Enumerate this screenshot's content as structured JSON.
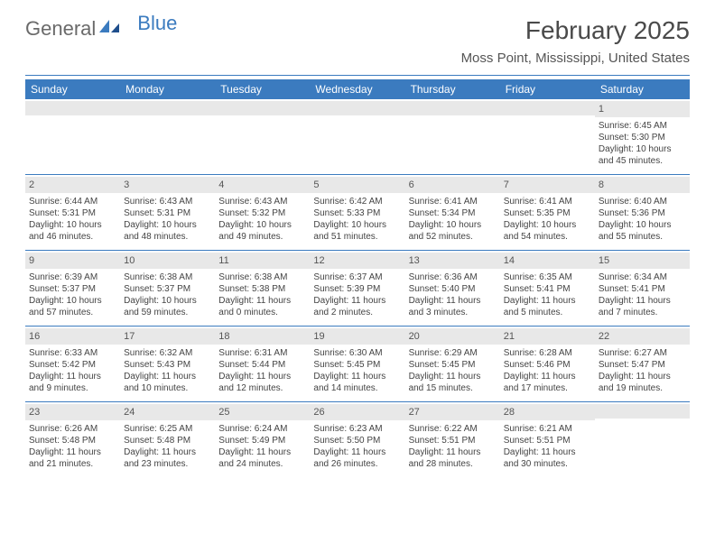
{
  "logo": {
    "text_general": "General",
    "text_blue": "Blue"
  },
  "header": {
    "month_title": "February 2025",
    "location": "Moss Point, Mississippi, United States"
  },
  "colors": {
    "brand_blue": "#3b7bbf",
    "header_gray": "#e8e8e8",
    "text": "#444444",
    "background": "#ffffff"
  },
  "day_names": [
    "Sunday",
    "Monday",
    "Tuesday",
    "Wednesday",
    "Thursday",
    "Friday",
    "Saturday"
  ],
  "weeks": [
    [
      {
        "empty": true
      },
      {
        "empty": true
      },
      {
        "empty": true
      },
      {
        "empty": true
      },
      {
        "empty": true
      },
      {
        "empty": true
      },
      {
        "day": "1",
        "sunrise": "Sunrise: 6:45 AM",
        "sunset": "Sunset: 5:30 PM",
        "daylight1": "Daylight: 10 hours",
        "daylight2": "and 45 minutes."
      }
    ],
    [
      {
        "day": "2",
        "sunrise": "Sunrise: 6:44 AM",
        "sunset": "Sunset: 5:31 PM",
        "daylight1": "Daylight: 10 hours",
        "daylight2": "and 46 minutes."
      },
      {
        "day": "3",
        "sunrise": "Sunrise: 6:43 AM",
        "sunset": "Sunset: 5:31 PM",
        "daylight1": "Daylight: 10 hours",
        "daylight2": "and 48 minutes."
      },
      {
        "day": "4",
        "sunrise": "Sunrise: 6:43 AM",
        "sunset": "Sunset: 5:32 PM",
        "daylight1": "Daylight: 10 hours",
        "daylight2": "and 49 minutes."
      },
      {
        "day": "5",
        "sunrise": "Sunrise: 6:42 AM",
        "sunset": "Sunset: 5:33 PM",
        "daylight1": "Daylight: 10 hours",
        "daylight2": "and 51 minutes."
      },
      {
        "day": "6",
        "sunrise": "Sunrise: 6:41 AM",
        "sunset": "Sunset: 5:34 PM",
        "daylight1": "Daylight: 10 hours",
        "daylight2": "and 52 minutes."
      },
      {
        "day": "7",
        "sunrise": "Sunrise: 6:41 AM",
        "sunset": "Sunset: 5:35 PM",
        "daylight1": "Daylight: 10 hours",
        "daylight2": "and 54 minutes."
      },
      {
        "day": "8",
        "sunrise": "Sunrise: 6:40 AM",
        "sunset": "Sunset: 5:36 PM",
        "daylight1": "Daylight: 10 hours",
        "daylight2": "and 55 minutes."
      }
    ],
    [
      {
        "day": "9",
        "sunrise": "Sunrise: 6:39 AM",
        "sunset": "Sunset: 5:37 PM",
        "daylight1": "Daylight: 10 hours",
        "daylight2": "and 57 minutes."
      },
      {
        "day": "10",
        "sunrise": "Sunrise: 6:38 AM",
        "sunset": "Sunset: 5:37 PM",
        "daylight1": "Daylight: 10 hours",
        "daylight2": "and 59 minutes."
      },
      {
        "day": "11",
        "sunrise": "Sunrise: 6:38 AM",
        "sunset": "Sunset: 5:38 PM",
        "daylight1": "Daylight: 11 hours",
        "daylight2": "and 0 minutes."
      },
      {
        "day": "12",
        "sunrise": "Sunrise: 6:37 AM",
        "sunset": "Sunset: 5:39 PM",
        "daylight1": "Daylight: 11 hours",
        "daylight2": "and 2 minutes."
      },
      {
        "day": "13",
        "sunrise": "Sunrise: 6:36 AM",
        "sunset": "Sunset: 5:40 PM",
        "daylight1": "Daylight: 11 hours",
        "daylight2": "and 3 minutes."
      },
      {
        "day": "14",
        "sunrise": "Sunrise: 6:35 AM",
        "sunset": "Sunset: 5:41 PM",
        "daylight1": "Daylight: 11 hours",
        "daylight2": "and 5 minutes."
      },
      {
        "day": "15",
        "sunrise": "Sunrise: 6:34 AM",
        "sunset": "Sunset: 5:41 PM",
        "daylight1": "Daylight: 11 hours",
        "daylight2": "and 7 minutes."
      }
    ],
    [
      {
        "day": "16",
        "sunrise": "Sunrise: 6:33 AM",
        "sunset": "Sunset: 5:42 PM",
        "daylight1": "Daylight: 11 hours",
        "daylight2": "and 9 minutes."
      },
      {
        "day": "17",
        "sunrise": "Sunrise: 6:32 AM",
        "sunset": "Sunset: 5:43 PM",
        "daylight1": "Daylight: 11 hours",
        "daylight2": "and 10 minutes."
      },
      {
        "day": "18",
        "sunrise": "Sunrise: 6:31 AM",
        "sunset": "Sunset: 5:44 PM",
        "daylight1": "Daylight: 11 hours",
        "daylight2": "and 12 minutes."
      },
      {
        "day": "19",
        "sunrise": "Sunrise: 6:30 AM",
        "sunset": "Sunset: 5:45 PM",
        "daylight1": "Daylight: 11 hours",
        "daylight2": "and 14 minutes."
      },
      {
        "day": "20",
        "sunrise": "Sunrise: 6:29 AM",
        "sunset": "Sunset: 5:45 PM",
        "daylight1": "Daylight: 11 hours",
        "daylight2": "and 15 minutes."
      },
      {
        "day": "21",
        "sunrise": "Sunrise: 6:28 AM",
        "sunset": "Sunset: 5:46 PM",
        "daylight1": "Daylight: 11 hours",
        "daylight2": "and 17 minutes."
      },
      {
        "day": "22",
        "sunrise": "Sunrise: 6:27 AM",
        "sunset": "Sunset: 5:47 PM",
        "daylight1": "Daylight: 11 hours",
        "daylight2": "and 19 minutes."
      }
    ],
    [
      {
        "day": "23",
        "sunrise": "Sunrise: 6:26 AM",
        "sunset": "Sunset: 5:48 PM",
        "daylight1": "Daylight: 11 hours",
        "daylight2": "and 21 minutes."
      },
      {
        "day": "24",
        "sunrise": "Sunrise: 6:25 AM",
        "sunset": "Sunset: 5:48 PM",
        "daylight1": "Daylight: 11 hours",
        "daylight2": "and 23 minutes."
      },
      {
        "day": "25",
        "sunrise": "Sunrise: 6:24 AM",
        "sunset": "Sunset: 5:49 PM",
        "daylight1": "Daylight: 11 hours",
        "daylight2": "and 24 minutes."
      },
      {
        "day": "26",
        "sunrise": "Sunrise: 6:23 AM",
        "sunset": "Sunset: 5:50 PM",
        "daylight1": "Daylight: 11 hours",
        "daylight2": "and 26 minutes."
      },
      {
        "day": "27",
        "sunrise": "Sunrise: 6:22 AM",
        "sunset": "Sunset: 5:51 PM",
        "daylight1": "Daylight: 11 hours",
        "daylight2": "and 28 minutes."
      },
      {
        "day": "28",
        "sunrise": "Sunrise: 6:21 AM",
        "sunset": "Sunset: 5:51 PM",
        "daylight1": "Daylight: 11 hours",
        "daylight2": "and 30 minutes."
      },
      {
        "empty": true
      }
    ]
  ]
}
